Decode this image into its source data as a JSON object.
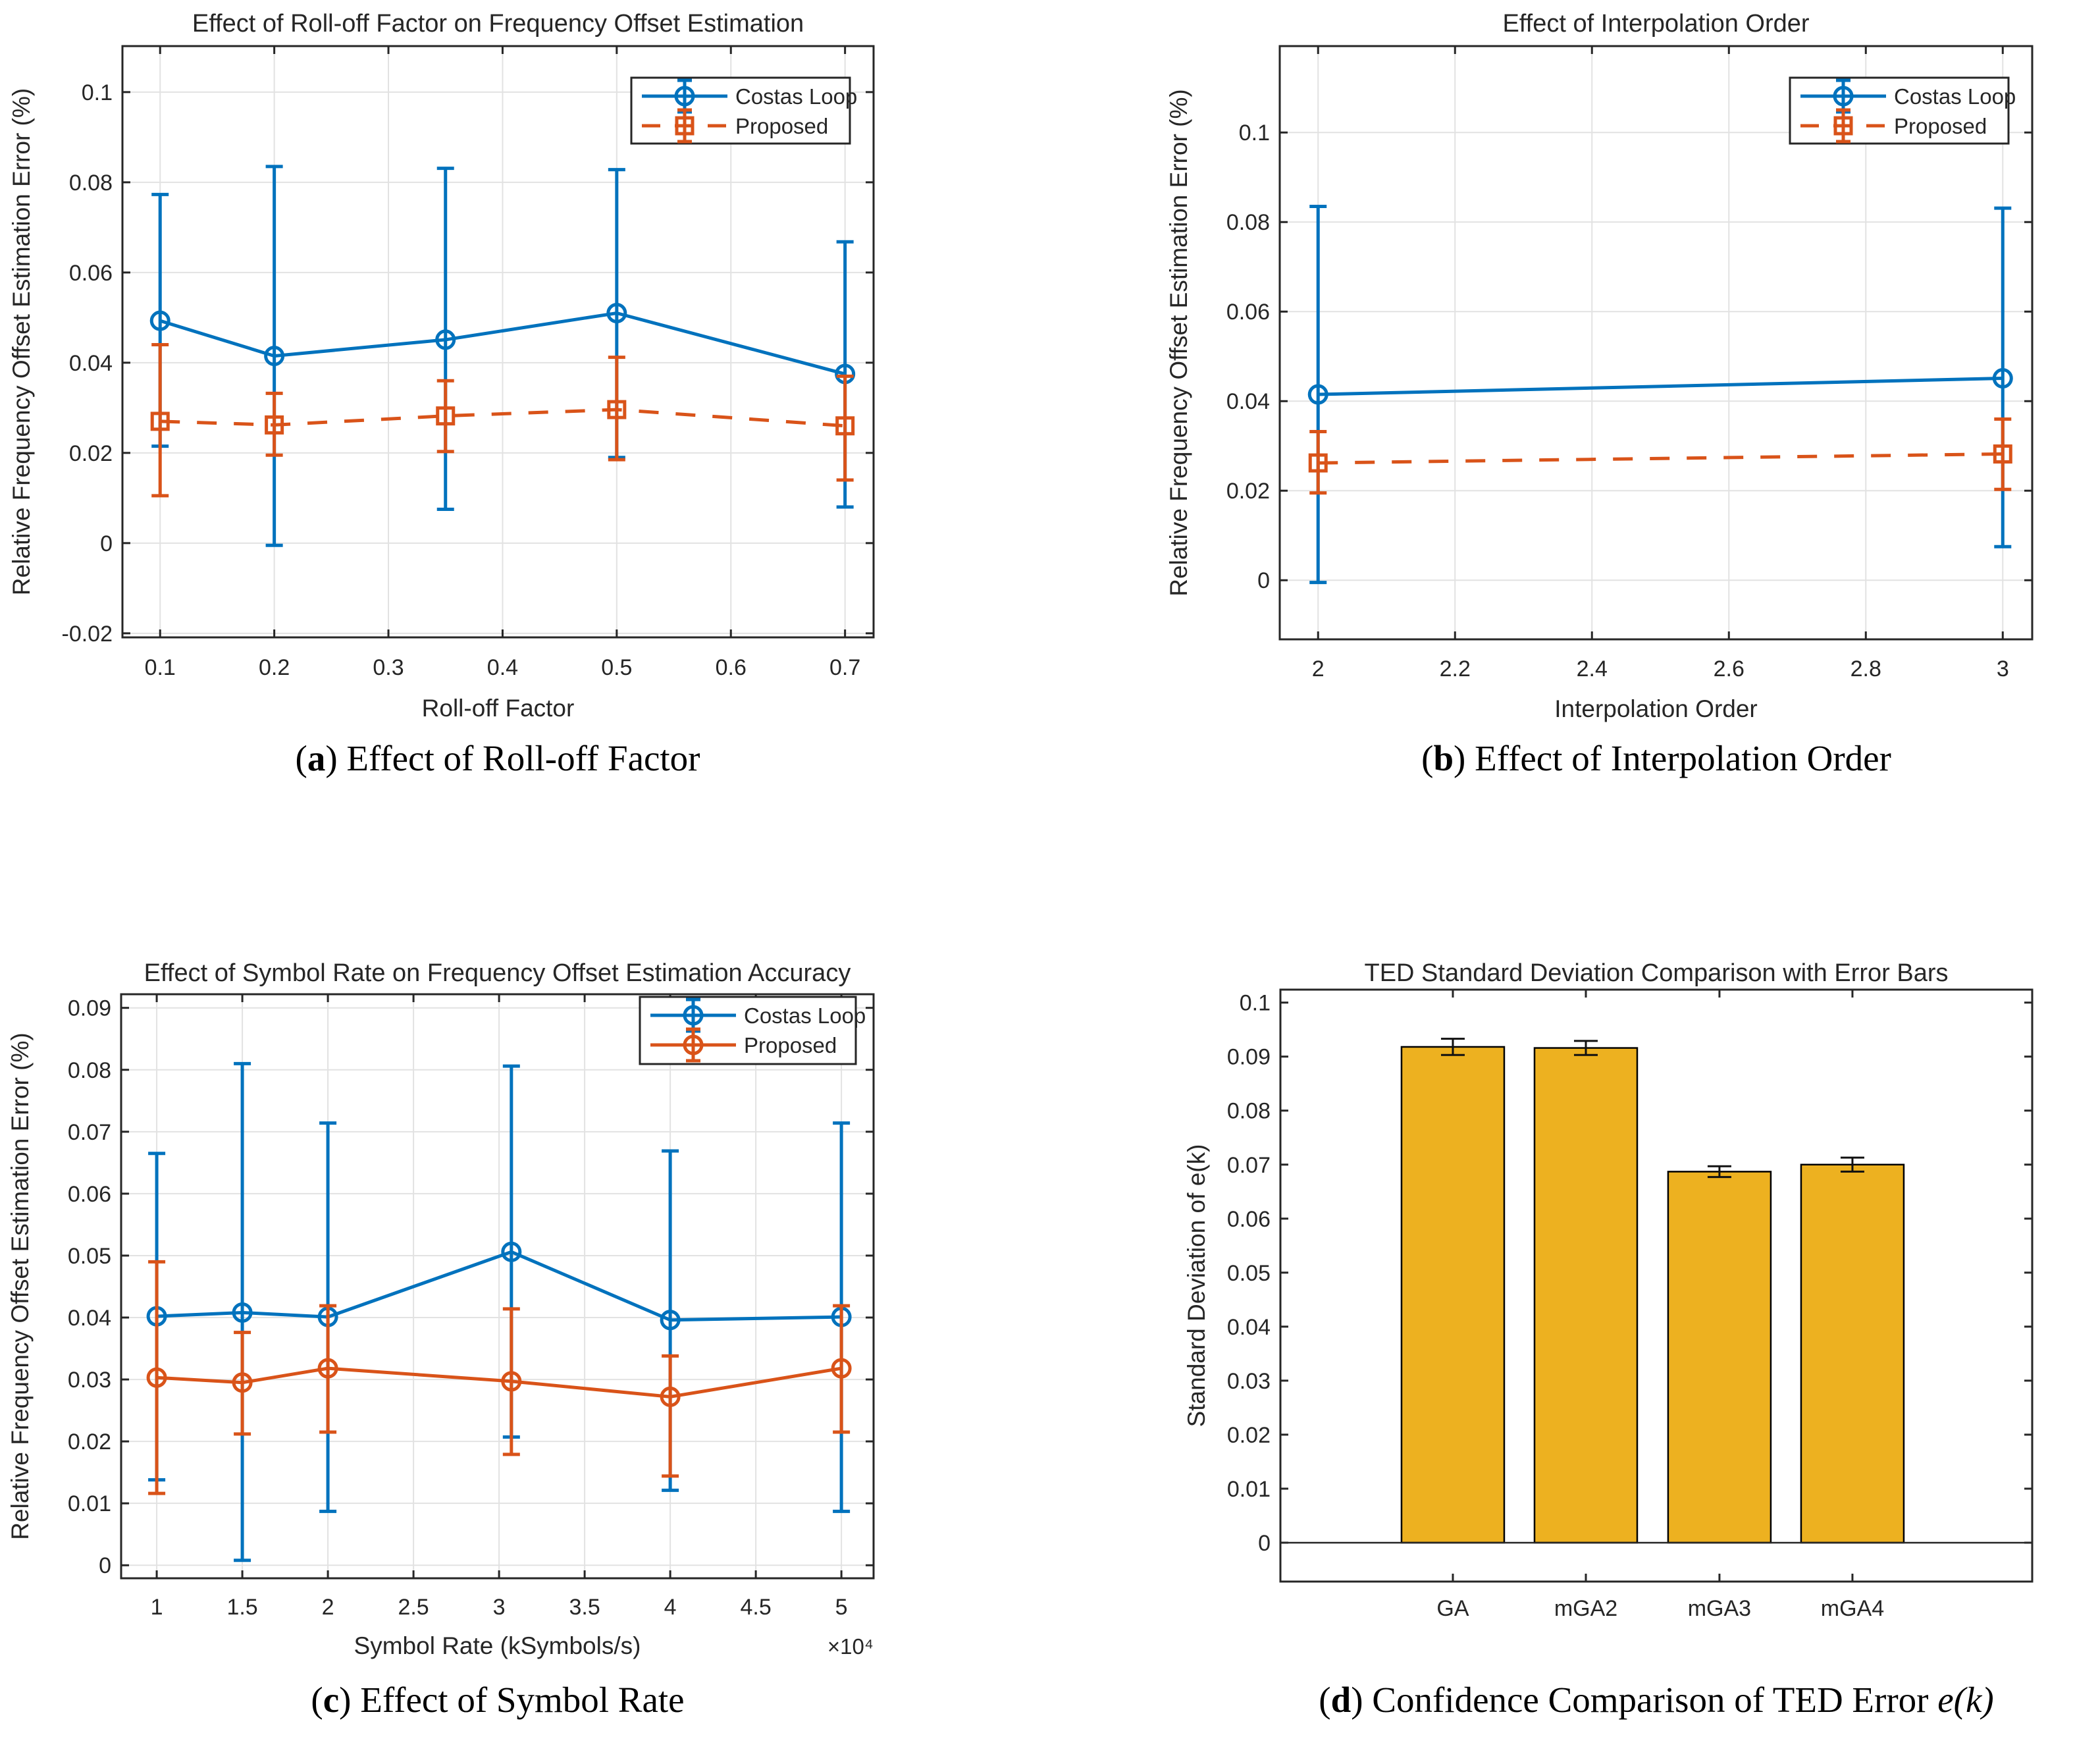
{
  "colors": {
    "axis": "#262626",
    "grid": "#E2E2E2",
    "text": "#262626",
    "background": "#FFFFFF",
    "costas_blue": "#0072BD",
    "proposed_orange": "#D95319",
    "bar_gold": "#EDB120",
    "error_black": "#111111"
  },
  "chart_data": [
    {
      "id": "a",
      "caption": {
        "prefix": "(",
        "letter": "a",
        "suffix": ") ",
        "text": "Effect of Roll-off Factor"
      },
      "type": "line",
      "title": "Effect of Roll-off Factor on Frequency Offset Estimation",
      "xlabel": "Roll-off Factor",
      "ylabel": "Relative Frequency Offset Estimation Error (%)",
      "xlim": [
        0.067,
        0.725
      ],
      "ylim": [
        -0.0209,
        0.1102
      ],
      "grid": true,
      "legend": {
        "position": "top-right"
      },
      "xticks": {
        "values": [
          0.1,
          0.2,
          0.3,
          0.4,
          0.5,
          0.6,
          0.7
        ],
        "labels": [
          "0.1",
          "0.2",
          "0.3",
          "0.4",
          "0.5",
          "0.6",
          "0.7"
        ]
      },
      "yticks": {
        "values": [
          -0.02,
          0,
          0.02,
          0.04,
          0.06,
          0.08,
          0.1
        ],
        "labels": [
          "-0.02",
          "0",
          "0.02",
          "0.04",
          "0.06",
          "0.08",
          "0.1"
        ]
      },
      "series": [
        {
          "name": "Costas Loop",
          "color": "#0072BD",
          "line": "solid",
          "marker": "circle",
          "x": [
            0.1,
            0.2,
            0.35,
            0.5,
            0.7
          ],
          "y": [
            0.0493,
            0.0415,
            0.0451,
            0.051,
            0.0375
          ],
          "y_lower": [
            0.0215,
            -0.0005,
            0.0075,
            0.019,
            0.008
          ],
          "y_upper": [
            0.0773,
            0.0835,
            0.0831,
            0.0828,
            0.0668
          ]
        },
        {
          "name": "Proposed",
          "color": "#D95319",
          "line": "dashed",
          "marker": "square",
          "x": [
            0.1,
            0.2,
            0.35,
            0.5,
            0.7
          ],
          "y": [
            0.027,
            0.0262,
            0.0282,
            0.0296,
            0.026
          ],
          "y_lower": [
            0.0105,
            0.0195,
            0.0203,
            0.0185,
            0.014
          ],
          "y_upper": [
            0.044,
            0.0332,
            0.036,
            0.0412,
            0.037
          ]
        }
      ]
    },
    {
      "id": "b",
      "caption": {
        "prefix": "(",
        "letter": "b",
        "suffix": ") ",
        "text": "Effect of Interpolation Order"
      },
      "type": "line",
      "title": "Effect of Interpolation Order",
      "xlabel": "Interpolation Order",
      "ylabel": "Relative Frequency Offset Estimation Error (%)",
      "xlim": [
        1.944,
        3.043
      ],
      "ylim": [
        -0.0132,
        0.1193
      ],
      "grid": true,
      "legend": {
        "position": "top-right"
      },
      "xticks": {
        "values": [
          2,
          2.2,
          2.4,
          2.6,
          2.8,
          3
        ],
        "labels": [
          "2",
          "2.2",
          "2.4",
          "2.6",
          "2.8",
          "3"
        ]
      },
      "yticks": {
        "values": [
          0,
          0.02,
          0.04,
          0.06,
          0.08,
          0.1
        ],
        "labels": [
          "0",
          "0.02",
          "0.04",
          "0.06",
          "0.08",
          "0.1"
        ]
      },
      "series": [
        {
          "name": "Costas Loop",
          "color": "#0072BD",
          "line": "solid",
          "marker": "circle",
          "x": [
            2,
            3
          ],
          "y": [
            0.0415,
            0.0451
          ],
          "y_lower": [
            -0.0005,
            0.0075
          ],
          "y_upper": [
            0.0835,
            0.0831
          ]
        },
        {
          "name": "Proposed",
          "color": "#D95319",
          "line": "dashed",
          "marker": "square",
          "x": [
            2,
            3
          ],
          "y": [
            0.0262,
            0.0282
          ],
          "y_lower": [
            0.0195,
            0.0203
          ],
          "y_upper": [
            0.0332,
            0.036
          ]
        }
      ]
    },
    {
      "id": "c",
      "caption": {
        "prefix": "(",
        "letter": "c",
        "suffix": ") ",
        "text": "Effect of Symbol Rate"
      },
      "type": "line",
      "title": "Effect of Symbol Rate on Frequency Offset Estimation Accuracy",
      "xlabel": "Symbol Rate (kSymbols/s)",
      "x_multiplier": "×10⁴",
      "ylabel": "Relative Frequency Offset Estimation Error (%)",
      "xlim": [
        0.792,
        5.188
      ],
      "ylim": [
        -0.0021,
        0.0922
      ],
      "grid": true,
      "legend": {
        "position": "top-right"
      },
      "xticks": {
        "values": [
          1,
          1.5,
          2,
          2.5,
          3,
          3.5,
          4,
          4.5,
          5
        ],
        "labels": [
          "1",
          "1.5",
          "2",
          "2.5",
          "3",
          "3.5",
          "4",
          "4.5",
          "5"
        ]
      },
      "yticks": {
        "values": [
          0,
          0.01,
          0.02,
          0.03,
          0.04,
          0.05,
          0.06,
          0.07,
          0.08,
          0.09
        ],
        "labels": [
          "0",
          "0.01",
          "0.02",
          "0.03",
          "0.04",
          "0.05",
          "0.06",
          "0.07",
          "0.08",
          "0.09"
        ]
      },
      "series": [
        {
          "name": "Costas Loop",
          "color": "#0072BD",
          "line": "solid",
          "marker": "circle",
          "x": [
            1,
            1.5,
            2,
            3.072,
            4,
            5
          ],
          "y": [
            0.0402,
            0.0408,
            0.0401,
            0.0506,
            0.0396,
            0.0401
          ],
          "y_lower": [
            0.0138,
            0.0008,
            0.0087,
            0.0207,
            0.0121,
            0.0087
          ],
          "y_upper": [
            0.0665,
            0.081,
            0.0714,
            0.0806,
            0.0669,
            0.0714
          ]
        },
        {
          "name": "Proposed",
          "color": "#D95319",
          "line": "solid",
          "marker": "circle",
          "x": [
            1,
            1.5,
            2,
            3.072,
            4,
            5
          ],
          "y": [
            0.0303,
            0.0295,
            0.0318,
            0.0297,
            0.0272,
            0.0318
          ],
          "y_lower": [
            0.0116,
            0.0212,
            0.0215,
            0.0179,
            0.0144,
            0.0215
          ],
          "y_upper": [
            0.049,
            0.0376,
            0.0419,
            0.0414,
            0.0338,
            0.0419
          ]
        }
      ]
    },
    {
      "id": "d",
      "caption": {
        "prefix": "(",
        "letter": "d",
        "suffix": ") ",
        "text": "Confidence Comparison of TED Error ",
        "math": "e(k)"
      },
      "type": "bar",
      "title": "TED Standard Deviation Comparison with Error Bars",
      "xlabel": "",
      "ylabel": "Standard Deviation of e(k)",
      "ylim": [
        -0.0072,
        0.1024
      ],
      "grid": false,
      "categories": [
        "GA",
        "mGA2",
        "mGA3",
        "mGA4"
      ],
      "values": [
        0.0918,
        0.0916,
        0.0687,
        0.07
      ],
      "errors": [
        0.0015,
        0.0013,
        0.001,
        0.0013
      ],
      "bar_color": "#EDB120",
      "yticks": {
        "values": [
          0,
          0.01,
          0.02,
          0.03,
          0.04,
          0.05,
          0.06,
          0.07,
          0.08,
          0.09,
          0.1
        ],
        "labels": [
          "0",
          "0.01",
          "0.02",
          "0.03",
          "0.04",
          "0.05",
          "0.06",
          "0.07",
          "0.08",
          "0.09",
          "0.1"
        ]
      }
    }
  ]
}
